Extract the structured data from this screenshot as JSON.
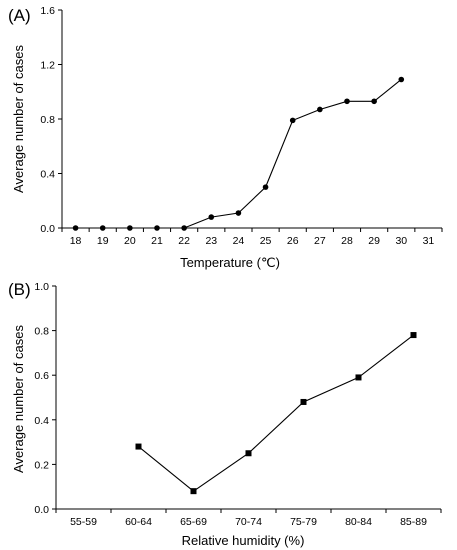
{
  "chart_data": [
    {
      "panel_label": "(A)",
      "type": "line",
      "marker": "circle",
      "xlabel": "Temperature (℃)",
      "ylabel": "Average number of cases",
      "categories": [
        "18",
        "19",
        "20",
        "21",
        "22",
        "23",
        "24",
        "25",
        "26",
        "27",
        "28",
        "29",
        "30",
        "31"
      ],
      "yticks": [
        "0.0",
        "0.4",
        "0.8",
        "1.2",
        "1.6"
      ],
      "ylim": [
        0,
        1.6
      ],
      "grid": false,
      "legend": "none",
      "series": [
        {
          "values": [
            0,
            0,
            0,
            0,
            0,
            0.08,
            0.11,
            0.3,
            0.79,
            0.87,
            0.93,
            0.93,
            1.09,
            null
          ]
        }
      ]
    },
    {
      "panel_label": "(B)",
      "type": "line",
      "marker": "square",
      "xlabel": "Relative humidity (%)",
      "ylabel": "Average number of cases",
      "categories": [
        "55-59",
        "60-64",
        "65-69",
        "70-74",
        "75-79",
        "80-84",
        "85-89"
      ],
      "yticks": [
        "0.0",
        "0.2",
        "0.4",
        "0.6",
        "0.8",
        "1.0"
      ],
      "ylim": [
        0,
        1.0
      ],
      "grid": false,
      "legend": "none",
      "series": [
        {
          "values": [
            null,
            0.28,
            0.08,
            0.25,
            0.48,
            0.59,
            0.78
          ]
        }
      ]
    }
  ]
}
